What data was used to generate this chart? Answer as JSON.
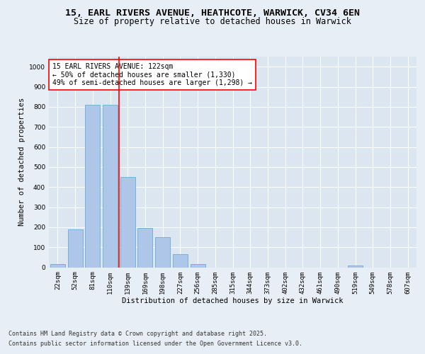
{
  "title_line1": "15, EARL RIVERS AVENUE, HEATHCOTE, WARWICK, CV34 6EN",
  "title_line2": "Size of property relative to detached houses in Warwick",
  "xlabel": "Distribution of detached houses by size in Warwick",
  "ylabel": "Number of detached properties",
  "categories": [
    "22sqm",
    "52sqm",
    "81sqm",
    "110sqm",
    "139sqm",
    "169sqm",
    "198sqm",
    "227sqm",
    "256sqm",
    "285sqm",
    "315sqm",
    "344sqm",
    "373sqm",
    "402sqm",
    "432sqm",
    "461sqm",
    "490sqm",
    "519sqm",
    "549sqm",
    "578sqm",
    "607sqm"
  ],
  "values": [
    15,
    190,
    810,
    810,
    450,
    195,
    150,
    65,
    15,
    0,
    0,
    0,
    0,
    0,
    0,
    0,
    0,
    10,
    0,
    0,
    0
  ],
  "bar_color": "#aec6e8",
  "bar_edge_color": "#6aacd6",
  "vline_color": "red",
  "annotation_text": "15 EARL RIVERS AVENUE: 122sqm\n← 50% of detached houses are smaller (1,330)\n49% of semi-detached houses are larger (1,298) →",
  "annotation_box_color": "white",
  "annotation_box_edge": "red",
  "ylim": [
    0,
    1050
  ],
  "yticks": [
    0,
    100,
    200,
    300,
    400,
    500,
    600,
    700,
    800,
    900,
    1000
  ],
  "background_color": "#e8eef5",
  "plot_bg_color": "#dce6f0",
  "footer_line1": "Contains HM Land Registry data © Crown copyright and database right 2025.",
  "footer_line2": "Contains public sector information licensed under the Open Government Licence v3.0.",
  "title_fontsize": 9.5,
  "subtitle_fontsize": 8.5,
  "axis_label_fontsize": 7.5,
  "tick_fontsize": 6.5,
  "annotation_fontsize": 7,
  "footer_fontsize": 6
}
